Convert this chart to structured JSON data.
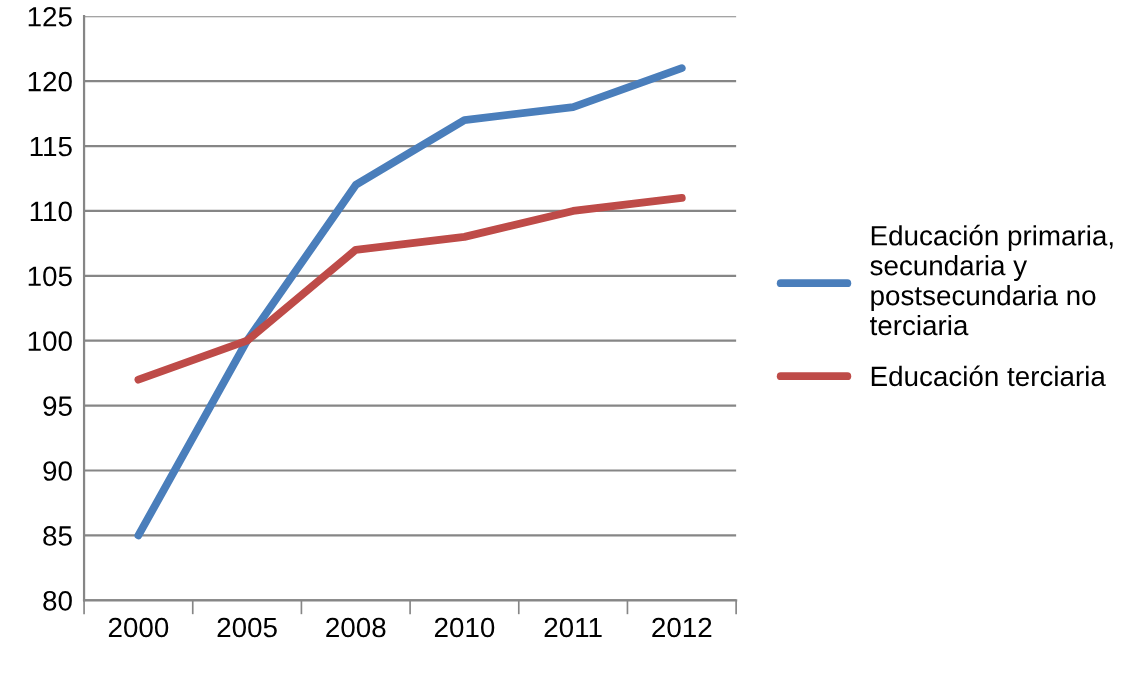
{
  "chart_data": {
    "type": "line",
    "categories": [
      "2000",
      "2005",
      "2008",
      "2010",
      "2011",
      "2012"
    ],
    "series": [
      {
        "name": "Educación primaria,\nsecundaria y\npostsecundaria no\nterciaria",
        "color": "#4a7ebb",
        "values": [
          85,
          100,
          112,
          117,
          118,
          121
        ]
      },
      {
        "name": "Educación terciaria",
        "color": "#be4b48",
        "values": [
          97,
          100,
          107,
          108,
          110,
          111
        ]
      }
    ],
    "ylim": [
      80,
      125
    ],
    "yticks": [
      80,
      85,
      90,
      95,
      100,
      105,
      110,
      115,
      120,
      125
    ],
    "grid": "y",
    "legend": "right",
    "marker": "none",
    "line_style": "solid"
  }
}
